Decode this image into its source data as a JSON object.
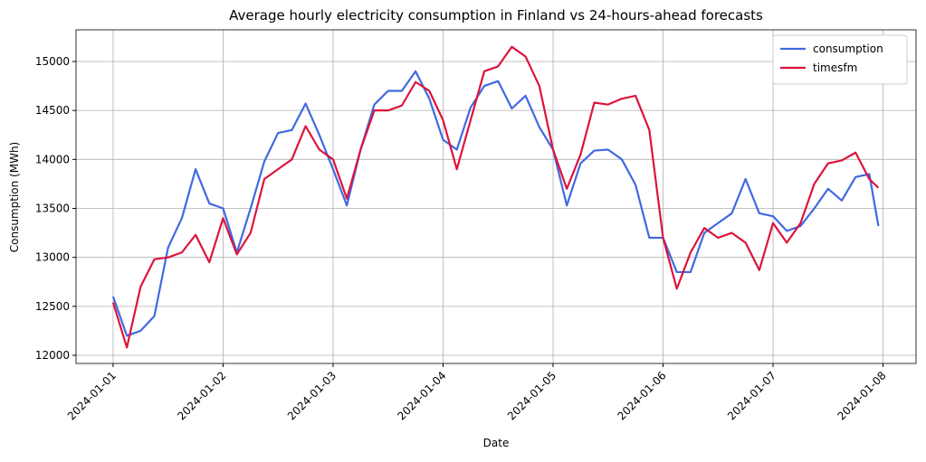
{
  "chart_data": {
    "type": "line",
    "title": "Average hourly electricity consumption in Finland vs 24-hours-ahead forecasts",
    "x_label": "Date",
    "y_label": "Consumption (MWh)",
    "x": [
      0,
      0.125,
      0.25,
      0.375,
      0.5,
      0.625,
      0.75,
      0.875,
      1.0,
      1.125,
      1.25,
      1.375,
      1.5,
      1.625,
      1.75,
      1.875,
      2.0,
      2.125,
      2.25,
      2.375,
      2.5,
      2.625,
      2.75,
      2.875,
      3.0,
      3.125,
      3.25,
      3.375,
      3.5,
      3.625,
      3.75,
      3.875,
      4.0,
      4.125,
      4.25,
      4.375,
      4.5,
      4.625,
      4.75,
      4.875,
      5.0,
      5.125,
      5.25,
      5.375,
      5.5,
      5.625,
      5.75,
      5.875,
      6.0,
      6.125,
      6.25,
      6.375,
      6.5,
      6.625,
      6.75,
      6.875,
      6.958
    ],
    "series": [
      {
        "name": "consumption",
        "color": "#4169e1",
        "values": [
          12600,
          12200,
          12250,
          12400,
          13100,
          13400,
          13900,
          13550,
          13500,
          13050,
          13500,
          13980,
          14270,
          14300,
          14570,
          14250,
          13900,
          13530,
          14100,
          14560,
          14700,
          14700,
          14900,
          14620,
          14200,
          14100,
          14530,
          14750,
          14800,
          14520,
          14650,
          14330,
          14100,
          13530,
          13960,
          14090,
          14100,
          14000,
          13740,
          13200,
          13200,
          12850,
          12850,
          13250,
          13350,
          13450,
          13800,
          13450,
          13420,
          13270,
          13320,
          13500,
          13700,
          13580,
          13820,
          13850,
          13320
        ]
      },
      {
        "name": "timesfm",
        "color": "#dc143c",
        "values": [
          12540,
          12080,
          12700,
          12980,
          13000,
          13050,
          13230,
          12950,
          13400,
          13030,
          13250,
          13800,
          13900,
          14000,
          14340,
          14100,
          14000,
          13600,
          14100,
          14500,
          14500,
          14550,
          14790,
          14700,
          14400,
          13900,
          14400,
          14900,
          14950,
          15150,
          15050,
          14750,
          14100,
          13700,
          14050,
          14580,
          14560,
          14620,
          14650,
          14300,
          13200,
          12680,
          13050,
          13300,
          13200,
          13250,
          13150,
          12870,
          13350,
          13150,
          13350,
          13750,
          13960,
          13990,
          14070,
          13800,
          13710
        ]
      }
    ],
    "xlim": [
      -0.337,
      7.3
    ],
    "ylim": [
      11917,
      15323
    ],
    "xticks": [
      {
        "value": 0,
        "label": "2024-01-01"
      },
      {
        "value": 1,
        "label": "2024-01-02"
      },
      {
        "value": 2,
        "label": "2024-01-03"
      },
      {
        "value": 3,
        "label": "2024-01-04"
      },
      {
        "value": 4,
        "label": "2024-01-05"
      },
      {
        "value": 5,
        "label": "2024-01-06"
      },
      {
        "value": 6,
        "label": "2024-01-07"
      },
      {
        "value": 7,
        "label": "2024-01-08"
      }
    ],
    "yticks": [
      12000,
      12500,
      13000,
      13500,
      14000,
      14500,
      15000
    ],
    "grid": true,
    "legend": "upper right"
  }
}
